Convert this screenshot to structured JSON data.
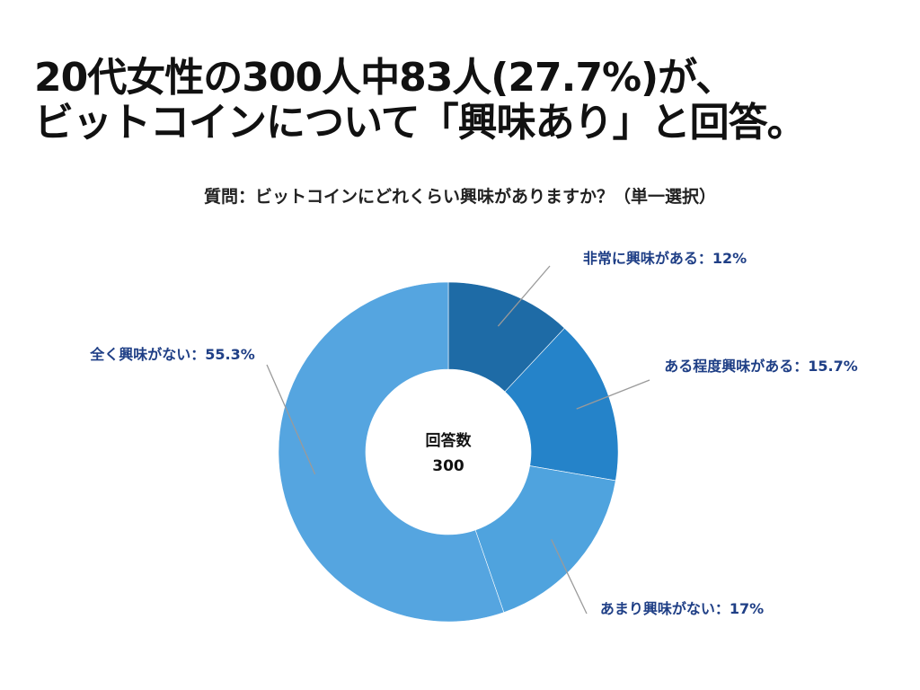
{
  "headline": {
    "line1": "20代女性の300人中83人(27.7%)が、",
    "line2": "ビットコインについて「興味あり」と回答。"
  },
  "chart_data": {
    "type": "pie",
    "title": "質問：ビットコインにどれくらい興味がありますか？（単一選択）",
    "center_label": "回答数",
    "center_value": "300",
    "slices": [
      {
        "name": "非常に興味がある",
        "value": 12,
        "label": "非常に興味がある：12%",
        "color": "#1e6ba6"
      },
      {
        "name": "ある程度興味がある",
        "value": 15.7,
        "label": "ある程度興味がある：15.7%",
        "color": "#2583c9"
      },
      {
        "name": "あまり興味がない",
        "value": 17,
        "label": "あまり興味がない：17%",
        "color": "#4fa3de"
      },
      {
        "name": "全く興味がない",
        "value": 55.3,
        "label": "全く興味がない：55.3%",
        "color": "#55a5e0"
      }
    ],
    "label_color": "#1f3f86",
    "leader_color": "#9a9a9a"
  }
}
